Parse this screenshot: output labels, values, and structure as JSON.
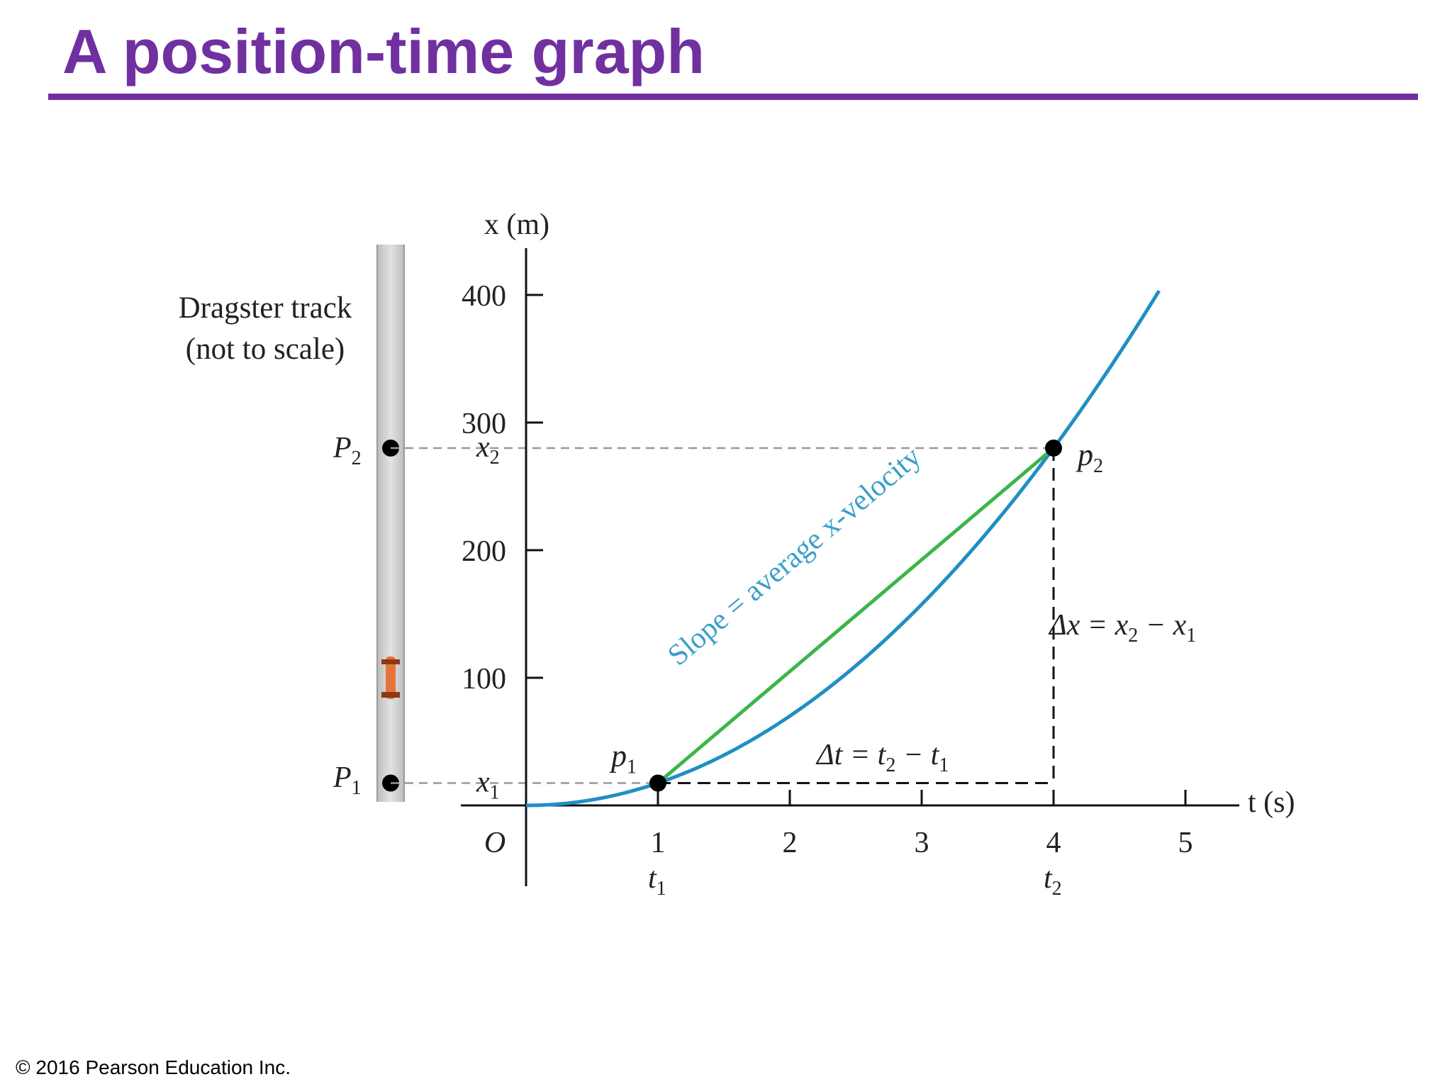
{
  "slide": {
    "title": "A position-time graph",
    "copyright": "© 2016 Pearson Education Inc."
  },
  "colors": {
    "title": "#7030a0",
    "curve": "#1f8fc4",
    "secant": "#3cb54a",
    "slope_label": "#3aa0c8",
    "track": "#d9d9d9",
    "car": "#e8733a"
  },
  "track": {
    "label_line1": "Dragster track",
    "label_line2": "(not to scale)",
    "p1_label": "P",
    "p1_sub": "1",
    "p2_label": "P",
    "p2_sub": "2",
    "car_x": 100
  },
  "chart_data": {
    "type": "line",
    "xlabel": "t (s)",
    "ylabel": "x (m)",
    "xlim": [
      0,
      5.5
    ],
    "ylim": [
      -60,
      440
    ],
    "x_ticks": [
      0,
      1,
      2,
      3,
      4,
      5
    ],
    "x_tick_labels": [
      "O",
      "1",
      "2",
      "3",
      "4",
      "5"
    ],
    "y_ticks": [
      100,
      200,
      300,
      400
    ],
    "y_tick_labels": [
      "100",
      "200",
      "300",
      "400"
    ],
    "curve": {
      "equation": "x = 17.5 t^2",
      "x": [
        0,
        0.5,
        1,
        1.5,
        2,
        2.5,
        3,
        3.5,
        4,
        4.5,
        4.8
      ],
      "y": [
        0,
        4.4,
        17.5,
        39.4,
        70,
        109.4,
        157.5,
        214.4,
        280,
        354.4,
        403
      ]
    },
    "secant": {
      "x": [
        1,
        4
      ],
      "y": [
        17.5,
        280
      ]
    },
    "points": [
      {
        "label": "p",
        "sub": "1",
        "t": 1,
        "x": 17.5,
        "t_label": "t",
        "t_sub": "1",
        "x_label": "x",
        "x_sub": "1"
      },
      {
        "label": "p",
        "sub": "2",
        "t": 4,
        "x": 280,
        "t_label": "t",
        "t_sub": "2",
        "x_label": "x",
        "x_sub": "2"
      }
    ],
    "annotations": {
      "slope": "Slope = average x-velocity",
      "delta_t": "Δt = t",
      "delta_t_sub2": "2",
      "delta_t_mid": " − t",
      "delta_t_sub1": "1",
      "delta_x": "Δx = x",
      "delta_x_sub2": "2",
      "delta_x_mid": " − x",
      "delta_x_sub1": "1"
    }
  }
}
